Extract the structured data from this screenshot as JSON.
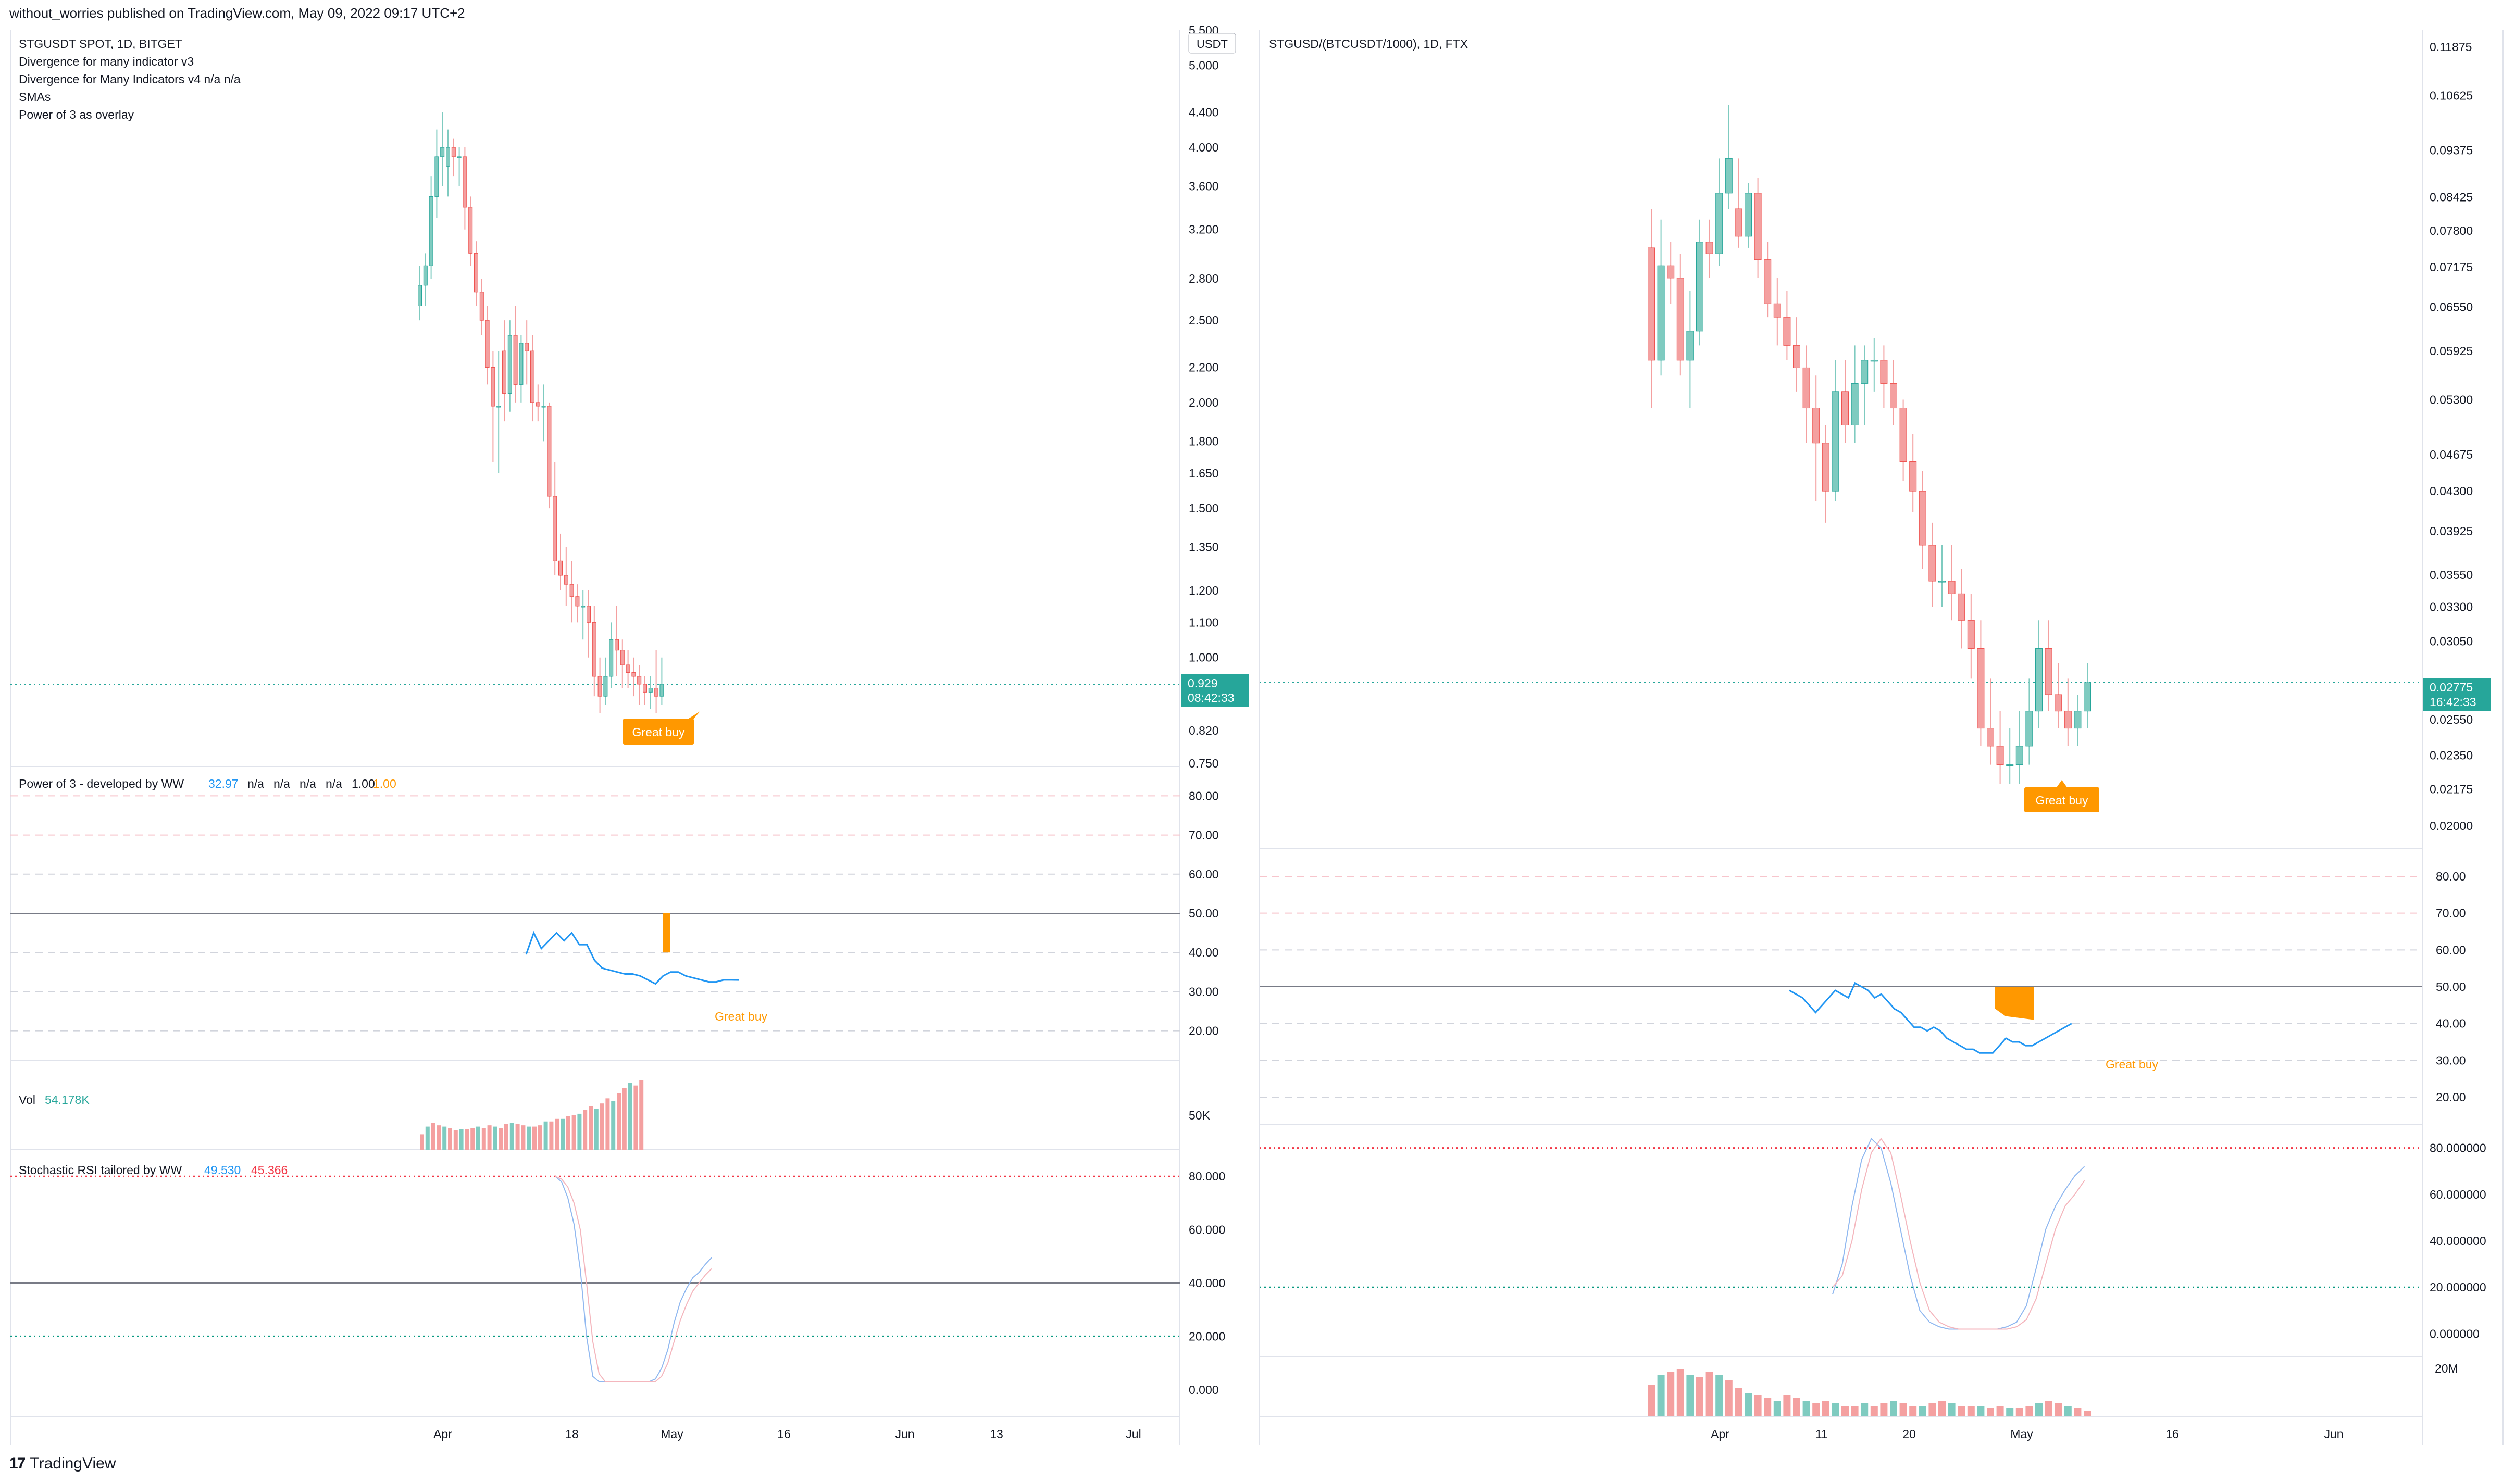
{
  "header": "without_worries published on TradingView.com, May 09, 2022 09:17 UTC+2",
  "footer": {
    "brand": "TradingView",
    "logo": "tradingview-logo-icon"
  },
  "colors": {
    "up": "#26a69a",
    "down": "#ef5350",
    "up_fill": "#7fcbc0",
    "down_fill": "#f4a0a0",
    "orange": "#ff9800",
    "blue": "#2196f3",
    "red": "#f23645",
    "green": "#089981",
    "grid": "#e0e3eb"
  },
  "left": {
    "legend": [
      "STGUSDT SPOT, 1D, BITGET",
      "Divergence for many indicator v3",
      "Divergence for Many Indicators v4  n/a  n/a",
      "SMAs",
      "Power of 3 as overlay"
    ],
    "currency": "USDT",
    "price_ticks": [
      "5.500",
      "5.000",
      "4.400",
      "4.000",
      "3.600",
      "3.200",
      "2.800",
      "2.500",
      "2.200",
      "2.000",
      "1.800",
      "1.650",
      "1.500",
      "1.350",
      "1.200",
      "1.100",
      "1.000",
      "0.820",
      "0.750"
    ],
    "price_tag": "0.929",
    "countdown": "08:42:33",
    "great_buy": "Great buy",
    "power_title": "Power of 3 - developed by WW",
    "power_values": [
      "32.97",
      "n/a",
      "n/a",
      "n/a",
      "n/a",
      "1.00"
    ],
    "power_ticks": [
      "80.00",
      "70.00",
      "60.00",
      "50.00",
      "40.00",
      "30.00",
      "20.00"
    ],
    "vol_title": "Vol",
    "vol_value": "54.178K",
    "vol_tick": "50K",
    "stoch_title": "Stochastic RSI tailored by WW",
    "stoch_k": "49.530",
    "stoch_d": "45.366",
    "stoch_ticks": [
      "80.000",
      "60.000",
      "40.000",
      "20.000",
      "0.000"
    ],
    "x_ticks": [
      "Apr",
      "18",
      "May",
      "16",
      "Jun",
      "13",
      "Jul"
    ]
  },
  "right": {
    "legend": [
      "STGUSD/(BTCUSDT/1000), 1D, FTX"
    ],
    "price_ticks": [
      "0.11875",
      "0.10625",
      "0.09375",
      "0.08425",
      "0.07800",
      "0.07175",
      "0.06550",
      "0.05925",
      "0.05300",
      "0.04675",
      "0.04300",
      "0.03925",
      "0.03550",
      "0.03300",
      "0.03050",
      "0.02550",
      "0.02350",
      "0.02175",
      "0.02000"
    ],
    "price_tag": "0.02775",
    "countdown": "16:42:33",
    "great_buy": "Great buy",
    "power_ticks": [
      "80.00",
      "70.00",
      "60.00",
      "50.00",
      "40.00",
      "30.00",
      "20.00"
    ],
    "stoch_ticks": [
      "80.000000",
      "60.000000",
      "40.000000",
      "20.000000",
      "0.000000"
    ],
    "vol_tick": "20M",
    "x_ticks": [
      "Apr",
      "11",
      "20",
      "May",
      "16",
      "Jun"
    ]
  },
  "chart_data": [
    {
      "type": "candlestick",
      "title": "STGUSDT SPOT, 1D, BITGET",
      "ylabel": "USDT",
      "ylim": [
        0.75,
        5.5
      ],
      "y_scale": "log",
      "x": [
        "2022-03-27",
        "2022-03-28",
        "2022-03-29",
        "2022-03-30",
        "2022-03-31",
        "2022-04-01",
        "2022-04-02",
        "2022-04-03",
        "2022-04-04",
        "2022-04-05",
        "2022-04-06",
        "2022-04-07",
        "2022-04-08",
        "2022-04-09",
        "2022-04-10",
        "2022-04-11",
        "2022-04-12",
        "2022-04-13",
        "2022-04-14",
        "2022-04-15",
        "2022-04-16",
        "2022-04-17",
        "2022-04-18",
        "2022-04-19",
        "2022-04-20",
        "2022-04-21",
        "2022-04-22",
        "2022-04-23",
        "2022-04-24",
        "2022-04-25",
        "2022-04-26",
        "2022-04-27",
        "2022-04-28",
        "2022-04-29",
        "2022-04-30",
        "2022-05-01",
        "2022-05-02",
        "2022-05-03",
        "2022-05-04",
        "2022-05-05",
        "2022-05-06",
        "2022-05-07",
        "2022-05-08",
        "2022-05-09"
      ],
      "open": [
        2.6,
        2.75,
        2.9,
        3.5,
        3.9,
        3.8,
        4.0,
        3.9,
        3.9,
        3.4,
        3.0,
        2.7,
        2.5,
        2.2,
        1.98,
        2.3,
        2.05,
        2.4,
        2.1,
        2.35,
        2.3,
        2.0,
        1.98,
        1.98,
        1.55,
        1.3,
        1.25,
        1.22,
        1.18,
        1.15,
        1.15,
        1.1,
        0.95,
        0.9,
        0.95,
        1.05,
        1.02,
        0.98,
        0.96,
        0.95,
        0.93,
        0.91,
        0.92,
        0.9
      ],
      "close": [
        2.75,
        2.9,
        3.5,
        3.9,
        4.0,
        4.0,
        3.9,
        3.9,
        3.4,
        3.0,
        2.7,
        2.5,
        2.2,
        1.98,
        1.98,
        2.05,
        2.4,
        2.1,
        2.35,
        2.3,
        2.0,
        1.98,
        1.98,
        1.55,
        1.3,
        1.25,
        1.22,
        1.18,
        1.15,
        1.15,
        1.1,
        0.95,
        0.9,
        0.95,
        1.05,
        1.02,
        0.98,
        0.96,
        0.95,
        0.93,
        0.91,
        0.92,
        0.9,
        0.93
      ],
      "high": [
        2.9,
        3.0,
        3.7,
        4.2,
        4.4,
        4.2,
        4.1,
        4.0,
        4.0,
        3.5,
        3.1,
        2.8,
        2.6,
        2.3,
        2.3,
        2.5,
        2.5,
        2.6,
        2.4,
        2.5,
        2.4,
        2.1,
        2.1,
        2.0,
        1.7,
        1.4,
        1.35,
        1.3,
        1.22,
        1.2,
        1.2,
        1.15,
        1.0,
        1.0,
        1.1,
        1.15,
        1.05,
        1.02,
        1.0,
        0.98,
        0.95,
        0.95,
        1.02,
        1.0
      ],
      "low": [
        2.5,
        2.6,
        2.8,
        3.3,
        3.6,
        3.5,
        3.7,
        3.6,
        3.2,
        2.9,
        2.6,
        2.4,
        2.1,
        1.7,
        1.65,
        1.9,
        1.95,
        2.0,
        2.0,
        2.1,
        1.9,
        1.9,
        1.8,
        1.5,
        1.25,
        1.2,
        1.15,
        1.1,
        1.1,
        1.05,
        1.0,
        0.9,
        0.86,
        0.88,
        0.92,
        0.95,
        0.92,
        0.92,
        0.9,
        0.88,
        0.88,
        0.87,
        0.86,
        0.88
      ],
      "annotations": [
        "Great buy"
      ]
    },
    {
      "type": "line",
      "title": "Power of 3 - developed by WW",
      "ylim": [
        15,
        85
      ],
      "x": [
        "2022-04-11",
        "2022-04-12",
        "2022-04-13",
        "2022-04-14",
        "2022-04-15",
        "2022-04-16",
        "2022-04-17",
        "2022-04-18",
        "2022-04-19",
        "2022-04-20",
        "2022-04-21",
        "2022-04-22",
        "2022-04-23",
        "2022-04-24",
        "2022-04-25",
        "2022-04-26",
        "2022-04-27",
        "2022-04-28",
        "2022-04-29",
        "2022-04-30",
        "2022-05-01",
        "2022-05-02",
        "2022-05-03",
        "2022-05-04",
        "2022-05-05",
        "2022-05-06",
        "2022-05-07",
        "2022-05-08",
        "2022-05-09"
      ],
      "values": [
        39.5,
        45,
        41,
        43,
        45,
        43,
        45,
        42,
        42,
        38,
        36,
        35.5,
        35,
        34.5,
        34.5,
        34,
        33,
        32,
        34,
        35,
        35,
        34,
        33.5,
        33,
        32.5,
        32.5,
        33,
        33,
        32.97
      ]
    },
    {
      "type": "bar",
      "title": "Vol",
      "ylim": [
        0,
        60000
      ],
      "values": [
        12000,
        18000,
        21000,
        19000,
        18000,
        17000,
        15000,
        16000,
        16000,
        17000,
        18000,
        17000,
        19000,
        18000,
        17000,
        20000,
        21000,
        20000,
        19000,
        18000,
        18000,
        19000,
        22000,
        22000,
        24000,
        24000,
        26000,
        27000,
        28000,
        31000,
        34000,
        32000,
        36000,
        40000,
        38000,
        44000,
        48000,
        52000,
        50000,
        54178
      ]
    },
    {
      "type": "line",
      "title": "Stochastic RSI tailored by WW",
      "ylim": [
        -5,
        90
      ],
      "x": [
        "2022-04-14",
        "2022-04-15",
        "2022-04-16",
        "2022-04-17",
        "2022-04-18",
        "2022-04-19",
        "2022-04-20",
        "2022-04-21",
        "2022-04-22",
        "2022-04-23",
        "2022-04-24",
        "2022-04-25",
        "2022-04-26",
        "2022-04-27",
        "2022-04-28",
        "2022-04-29",
        "2022-04-30",
        "2022-05-01",
        "2022-05-02",
        "2022-05-03",
        "2022-05-04",
        "2022-05-05",
        "2022-05-06",
        "2022-05-07",
        "2022-05-08",
        "2022-05-09"
      ],
      "series": [
        {
          "name": "49.530",
          "values": [
            80,
            78,
            72,
            62,
            45,
            20,
            5,
            3,
            3,
            3,
            3,
            3,
            3,
            3,
            3,
            3,
            4,
            8,
            15,
            25,
            33,
            38,
            42,
            44,
            47,
            49.53
          ]
        },
        {
          "name": "45.366",
          "values": [
            80,
            79,
            76,
            70,
            60,
            40,
            18,
            6,
            3,
            3,
            3,
            3,
            3,
            3,
            3,
            3,
            3,
            5,
            10,
            18,
            26,
            32,
            37,
            40,
            43,
            45.366
          ]
        }
      ]
    },
    {
      "type": "candlestick",
      "title": "STGUSD/(BTCUSDT/1000), 1D, FTX",
      "ylim": [
        0.02,
        0.11875
      ],
      "y_scale": "log",
      "x": [
        "2022-03-25",
        "2022-03-26",
        "2022-03-27",
        "2022-03-28",
        "2022-03-29",
        "2022-03-30",
        "2022-03-31",
        "2022-04-01",
        "2022-04-02",
        "2022-04-03",
        "2022-04-04",
        "2022-04-05",
        "2022-04-06",
        "2022-04-07",
        "2022-04-08",
        "2022-04-09",
        "2022-04-10",
        "2022-04-11",
        "2022-04-12",
        "2022-04-13",
        "2022-04-14",
        "2022-04-15",
        "2022-04-16",
        "2022-04-17",
        "2022-04-18",
        "2022-04-19",
        "2022-04-20",
        "2022-04-21",
        "2022-04-22",
        "2022-04-23",
        "2022-04-24",
        "2022-04-25",
        "2022-04-26",
        "2022-04-27",
        "2022-04-28",
        "2022-04-29",
        "2022-04-30",
        "2022-05-01",
        "2022-05-02",
        "2022-05-03",
        "2022-05-04",
        "2022-05-05",
        "2022-05-06",
        "2022-05-07",
        "2022-05-08",
        "2022-05-09"
      ],
      "open": [
        0.075,
        0.058,
        0.072,
        0.07,
        0.058,
        0.062,
        0.076,
        0.074,
        0.085,
        0.082,
        0.077,
        0.085,
        0.073,
        0.066,
        0.064,
        0.06,
        0.057,
        0.052,
        0.048,
        0.043,
        0.054,
        0.05,
        0.055,
        0.058,
        0.058,
        0.055,
        0.052,
        0.046,
        0.043,
        0.038,
        0.035,
        0.035,
        0.034,
        0.032,
        0.03,
        0.025,
        0.024,
        0.023,
        0.023,
        0.024,
        0.026,
        0.03,
        0.027,
        0.026,
        0.025,
        0.026
      ],
      "close": [
        0.058,
        0.072,
        0.07,
        0.058,
        0.062,
        0.076,
        0.074,
        0.085,
        0.092,
        0.077,
        0.085,
        0.073,
        0.066,
        0.064,
        0.06,
        0.057,
        0.052,
        0.048,
        0.043,
        0.054,
        0.05,
        0.055,
        0.058,
        0.058,
        0.055,
        0.052,
        0.046,
        0.043,
        0.038,
        0.035,
        0.035,
        0.034,
        0.032,
        0.03,
        0.025,
        0.024,
        0.023,
        0.023,
        0.024,
        0.026,
        0.03,
        0.027,
        0.026,
        0.025,
        0.026,
        0.02775
      ],
      "high": [
        0.082,
        0.08,
        0.076,
        0.074,
        0.068,
        0.08,
        0.08,
        0.092,
        0.104,
        0.092,
        0.087,
        0.088,
        0.076,
        0.07,
        0.068,
        0.064,
        0.06,
        0.056,
        0.05,
        0.058,
        0.058,
        0.06,
        0.06,
        0.061,
        0.06,
        0.058,
        0.053,
        0.049,
        0.045,
        0.04,
        0.038,
        0.038,
        0.036,
        0.034,
        0.032,
        0.028,
        0.026,
        0.025,
        0.026,
        0.028,
        0.032,
        0.032,
        0.029,
        0.028,
        0.027,
        0.029
      ],
      "low": [
        0.052,
        0.056,
        0.066,
        0.056,
        0.052,
        0.06,
        0.07,
        0.072,
        0.082,
        0.075,
        0.075,
        0.07,
        0.064,
        0.06,
        0.058,
        0.054,
        0.048,
        0.042,
        0.04,
        0.042,
        0.048,
        0.048,
        0.05,
        0.054,
        0.052,
        0.05,
        0.044,
        0.041,
        0.036,
        0.033,
        0.033,
        0.032,
        0.03,
        0.028,
        0.024,
        0.023,
        0.022,
        0.022,
        0.022,
        0.023,
        0.025,
        0.026,
        0.025,
        0.024,
        0.024,
        0.025
      ],
      "annotations": [
        "Great buy"
      ]
    },
    {
      "type": "line",
      "title": "",
      "ylim": [
        15,
        85
      ],
      "values": [
        49,
        48,
        47,
        45,
        43,
        45,
        47,
        49,
        48,
        47,
        51,
        50,
        49,
        47,
        48,
        46,
        44,
        43,
        41,
        39,
        39,
        38,
        39,
        38,
        36,
        35,
        34,
        33,
        33,
        32,
        32,
        32,
        34,
        36,
        35,
        35,
        34,
        34,
        35,
        36,
        37,
        38,
        39,
        40
      ]
    },
    {
      "type": "line",
      "title": "",
      "ylim": [
        -5,
        90
      ],
      "series": [
        {
          "values": [
            17,
            30,
            55,
            75,
            84,
            80,
            65,
            45,
            25,
            10,
            5,
            3,
            2,
            2,
            2,
            2,
            2,
            2,
            3,
            5,
            12,
            28,
            45,
            55,
            62,
            68,
            72
          ]
        },
        {
          "values": [
            20,
            25,
            40,
            62,
            78,
            84,
            78,
            60,
            40,
            22,
            10,
            5,
            3,
            2,
            2,
            2,
            2,
            2,
            2,
            3,
            6,
            15,
            30,
            45,
            55,
            60,
            66
          ]
        }
      ]
    },
    {
      "type": "bar",
      "title": "",
      "ylim": [
        0,
        20000000
      ],
      "values": [
        12000000,
        16000000,
        17000000,
        18000000,
        16000000,
        15000000,
        17000000,
        16000000,
        14000000,
        11000000,
        9000000,
        8000000,
        7000000,
        6000000,
        8000000,
        7000000,
        6000000,
        5000000,
        6000000,
        5000000,
        4000000,
        4000000,
        5000000,
        4000000,
        5000000,
        6000000,
        5000000,
        4000000,
        4000000,
        5000000,
        6000000,
        5000000,
        4000000,
        4000000,
        4000000,
        3000000,
        4000000,
        3000000,
        3000000,
        4000000,
        5000000,
        6000000,
        5000000,
        4000000,
        3000000,
        2000000
      ]
    }
  ]
}
